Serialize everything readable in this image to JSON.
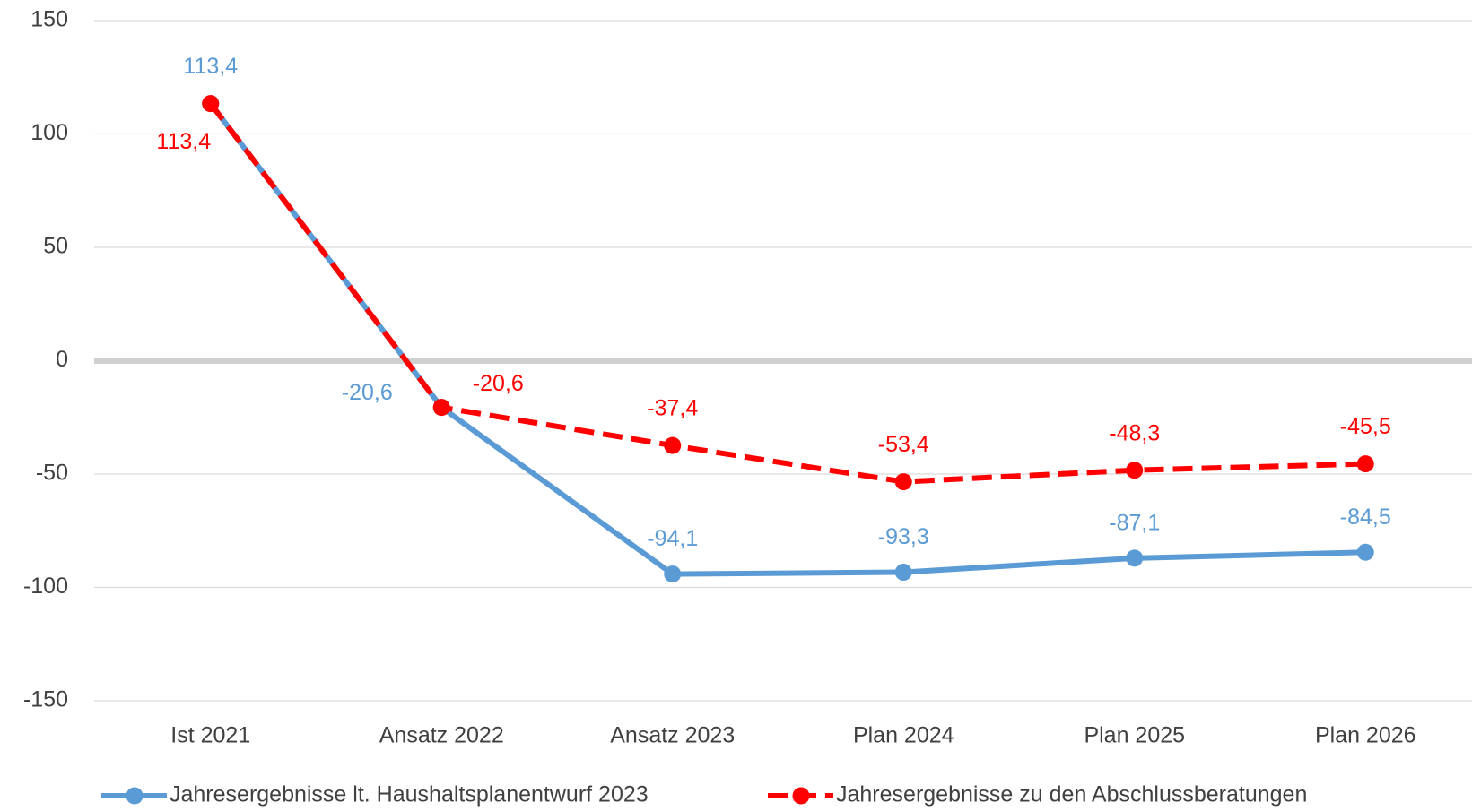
{
  "chart_data": {
    "type": "line",
    "categories": [
      "Ist 2021",
      "Ansatz 2022",
      "Ansatz 2023",
      "Plan 2024",
      "Plan 2025",
      "Plan 2026"
    ],
    "series": [
      {
        "name": "Jahresergebnisse lt. Haushaltsplanentwurf 2023",
        "color": "#5b9bd5",
        "dashed": false,
        "values": [
          113.4,
          -20.6,
          -94.1,
          -93.3,
          -87.1,
          -84.5
        ],
        "value_labels": [
          "113,4",
          "-20,6",
          "-94,1",
          "-93,3",
          "-87,1",
          "-84,5"
        ]
      },
      {
        "name": "Jahresergebnisse zu den Abschlussberatungen",
        "color": "#ff0000",
        "dashed": true,
        "values": [
          113.4,
          -20.6,
          -37.4,
          -53.4,
          -48.3,
          -45.5
        ],
        "value_labels": [
          "113,4",
          "-20,6",
          "-37,4",
          "-53,4",
          "-48,3",
          "-45,5"
        ]
      }
    ],
    "ylim": [
      -150,
      150
    ],
    "yticks": [
      -150,
      -100,
      -50,
      0,
      50,
      100,
      150
    ],
    "grid": true
  }
}
